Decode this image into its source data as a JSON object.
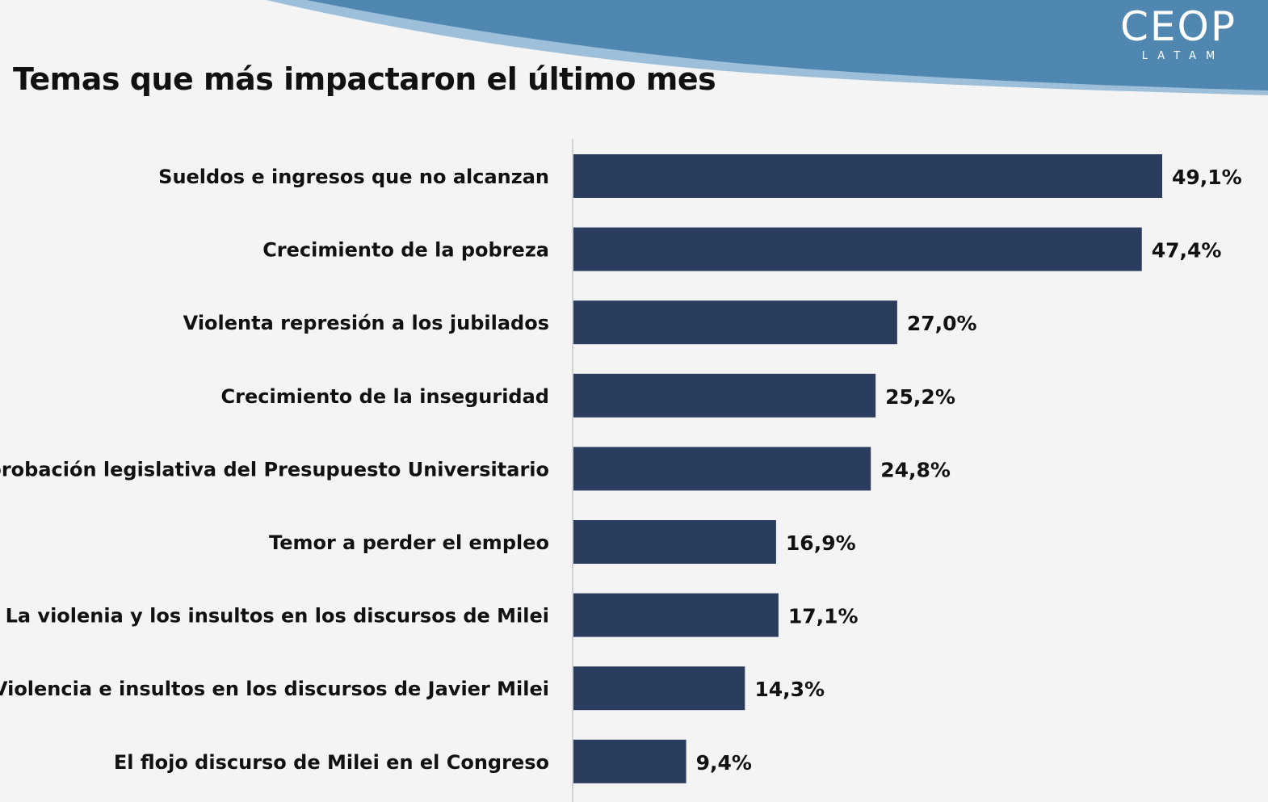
{
  "header": {
    "title": "Temas que más impactaron el último mes",
    "logo_word": "CEOP",
    "logo_sub": "LATAM"
  },
  "colors": {
    "bar": "#2b3d5e",
    "wave": "#4f87b1",
    "wave_light": "#8fb5d2",
    "background": "#f4f4f4"
  },
  "chart_data": {
    "type": "bar",
    "orientation": "horizontal",
    "title": "Temas que más impactaron el último mes",
    "xlabel": "",
    "ylabel": "",
    "xlim": [
      0,
      50
    ],
    "grid": false,
    "legend": "none",
    "categories": [
      "Sueldos e ingresos que no alcanzan",
      "Crecimiento de la pobreza",
      "Violenta represión a los jubilados",
      "Crecimiento de la inseguridad",
      "Aprobación legislativa del Presupuesto Universitario",
      "Temor a perder el empleo",
      "La violenia y los insultos en los discursos de Milei",
      "Violencia e insultos en los discursos de Javier Milei",
      "El flojo discurso de Milei en el Congreso"
    ],
    "values": [
      49.1,
      47.4,
      27.0,
      25.2,
      24.8,
      16.9,
      17.1,
      14.3,
      9.4
    ],
    "value_labels": [
      "49,1%",
      "47,4%",
      "27,0%",
      "25,2%",
      "24,8%",
      "16,9%",
      "17,1%",
      "14,3%",
      "9,4%"
    ]
  }
}
